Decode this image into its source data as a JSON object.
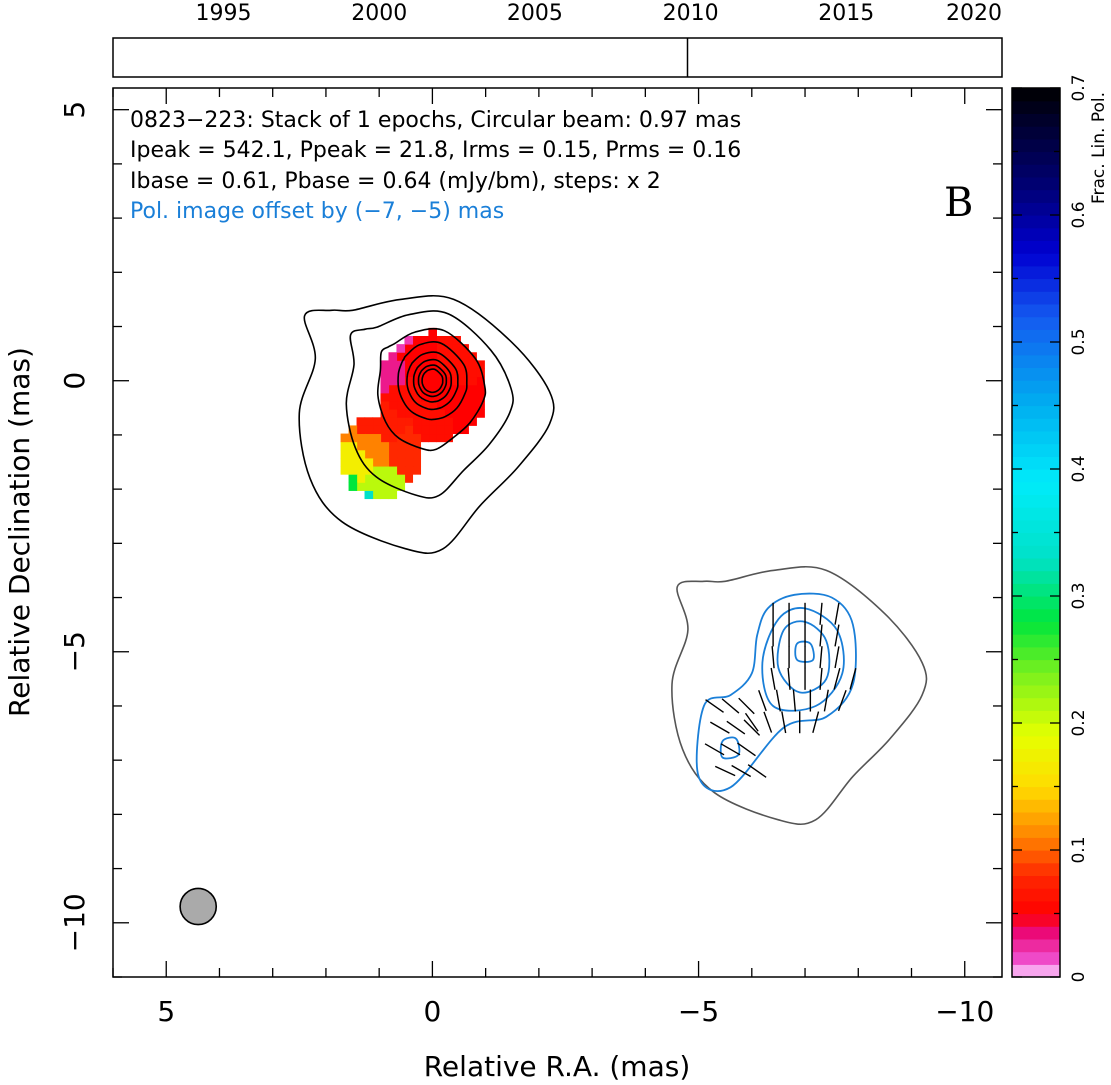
{
  "chart_data": {
    "type": "contour-map",
    "timeline": {
      "years": [
        "1995",
        "2000",
        "2005",
        "2010",
        "2015",
        "2020"
      ],
      "epochs": [
        2009.9
      ]
    },
    "plot": {
      "xlabel": "Relative R.A. (mas)",
      "ylabel": "Relative Declination (mas)",
      "xlim": [
        6,
        -10.7
      ],
      "ylim": [
        -11,
        5.4
      ],
      "xticks": [
        "5",
        "0",
        "−5",
        "−10"
      ],
      "xtick_values": [
        5,
        0,
        -5,
        -10
      ],
      "yticks": [
        "5",
        "0",
        "−5",
        "−10"
      ],
      "ytick_values": [
        5,
        0,
        -5,
        -10
      ],
      "panel_letter": "B",
      "info_lines": [
        "0823−223: Stack of 1 epochs, Circular beam: 0.97 mas",
        "Ipeak = 542.1, Ppeak = 21.8, Irms = 0.15, Prms = 0.16",
        "Ibase = 0.61, Pbase = 0.64 (mJy/bm), steps: x 2"
      ],
      "pol_offset_note": "Pol. image offset by (−7, −5) mas",
      "pol_offset_mas": [
        -7,
        -5
      ],
      "beam": {
        "x": 4.4,
        "y": -9.7,
        "diameter_mas": 0.97
      },
      "stokes_i_contours": {
        "color": "#000000",
        "center": [
          0,
          0
        ],
        "levels": 8,
        "outer_boundary_mas": [
          [
            2.4,
            1.2
          ],
          [
            2.2,
            0.4
          ],
          [
            2.5,
            -0.6
          ],
          [
            2.3,
            -1.8
          ],
          [
            1.7,
            -2.6
          ],
          [
            0.5,
            -3.1
          ],
          [
            -0.2,
            -3.1
          ],
          [
            -0.9,
            -2.3
          ],
          [
            -1.6,
            -1.6
          ],
          [
            -2.2,
            -0.8
          ],
          [
            -2.2,
            -0.2
          ],
          [
            -1.5,
            0.7
          ],
          [
            -0.4,
            1.5
          ],
          [
            0.6,
            1.5
          ],
          [
            1.5,
            1.3
          ],
          [
            1.9,
            1.3
          ]
        ]
      },
      "frac_pol_image": {
        "cells": [
          {
            "x": 0.0,
            "y": 0.0,
            "f": 0.05
          },
          {
            "x": -0.4,
            "y": 0.4,
            "f": 0.06
          },
          {
            "x": 0.4,
            "y": 0.4,
            "f": 0.05
          },
          {
            "x": 0.5,
            "y": -0.3,
            "f": 0.06
          },
          {
            "x": -0.5,
            "y": -0.5,
            "f": 0.05
          },
          {
            "x": 0.0,
            "y": -0.8,
            "f": 0.06
          },
          {
            "x": 0.8,
            "y": 0.2,
            "f": 0.03
          },
          {
            "x": 0.7,
            "y": 0.8,
            "f": 0.02
          },
          {
            "x": 0.9,
            "y": -0.8,
            "f": 0.07
          },
          {
            "x": 0.5,
            "y": -1.3,
            "f": 0.08
          },
          {
            "x": 1.1,
            "y": -1.3,
            "f": 0.11
          },
          {
            "x": 1.4,
            "y": -1.6,
            "f": 0.17
          },
          {
            "x": 1.1,
            "y": -1.9,
            "f": 0.21
          },
          {
            "x": 1.6,
            "y": -2.0,
            "f": 0.28
          },
          {
            "x": 1.3,
            "y": -2.2,
            "f": 0.33
          }
        ]
      },
      "pol_contours": {
        "color": "#1a7fd8",
        "halo_color": "#555555",
        "center": [
          -7,
          -5
        ],
        "levels": 4
      },
      "evpa_vectors": {
        "color": "#000000",
        "vectors": [
          [
            -6.4,
            -4.3,
            0
          ],
          [
            -6.7,
            -4.3,
            0
          ],
          [
            -7.0,
            -4.3,
            0
          ],
          [
            -7.3,
            -4.3,
            -5
          ],
          [
            -7.6,
            -4.3,
            -10
          ],
          [
            -6.4,
            -4.7,
            0
          ],
          [
            -6.7,
            -4.7,
            0
          ],
          [
            -7.0,
            -4.7,
            0
          ],
          [
            -7.3,
            -4.7,
            -5
          ],
          [
            -7.6,
            -4.7,
            -10
          ],
          [
            -6.4,
            -5.1,
            5
          ],
          [
            -6.7,
            -5.1,
            0
          ],
          [
            -7.0,
            -5.1,
            0
          ],
          [
            -7.3,
            -5.1,
            -5
          ],
          [
            -7.6,
            -5.1,
            -10
          ],
          [
            -6.4,
            -5.5,
            10
          ],
          [
            -6.7,
            -5.5,
            5
          ],
          [
            -7.0,
            -5.5,
            0
          ],
          [
            -7.3,
            -5.5,
            -5
          ],
          [
            -7.6,
            -5.5,
            -15
          ],
          [
            -7.9,
            -5.5,
            -15
          ],
          [
            -6.2,
            -5.9,
            20
          ],
          [
            -6.5,
            -5.9,
            10
          ],
          [
            -6.8,
            -5.9,
            5
          ],
          [
            -7.1,
            -5.9,
            0
          ],
          [
            -7.4,
            -5.9,
            -10
          ],
          [
            -7.7,
            -5.9,
            -20
          ],
          [
            -6.0,
            -6.3,
            35
          ],
          [
            -6.3,
            -6.3,
            20
          ],
          [
            -6.6,
            -6.3,
            10
          ],
          [
            -6.9,
            -6.3,
            0
          ],
          [
            -7.2,
            -6.3,
            -15
          ],
          [
            -5.3,
            -6.0,
            55
          ],
          [
            -5.6,
            -6.0,
            50
          ],
          [
            -5.9,
            -6.0,
            45
          ],
          [
            -5.4,
            -6.4,
            60
          ],
          [
            -5.7,
            -6.4,
            55
          ],
          [
            -6.0,
            -6.4,
            45
          ],
          [
            -5.3,
            -6.8,
            60
          ],
          [
            -5.6,
            -6.8,
            60
          ],
          [
            -5.9,
            -6.8,
            55
          ],
          [
            -5.5,
            -7.2,
            65
          ],
          [
            -5.8,
            -7.2,
            60
          ],
          [
            -6.1,
            -7.2,
            55
          ]
        ]
      }
    },
    "colorbar": {
      "label": "Frac. Lin. Pol.",
      "range": [
        0,
        0.7
      ],
      "ticks": [
        "0",
        "0.1",
        "0.2",
        "0.3",
        "0.4",
        "0.5",
        "0.6",
        "0.7"
      ],
      "tick_values": [
        0,
        0.1,
        0.2,
        0.3,
        0.4,
        0.5,
        0.6,
        0.7
      ]
    }
  }
}
